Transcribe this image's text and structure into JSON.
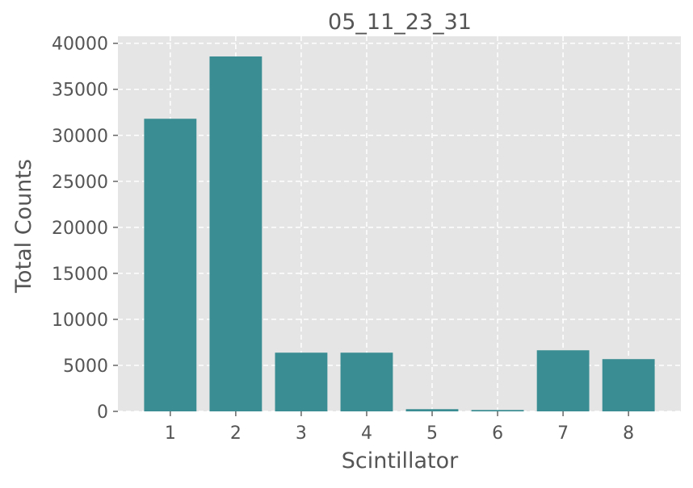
{
  "chart_data": {
    "type": "bar",
    "title": "05_11_23_31",
    "xlabel": "Scintillator",
    "ylabel": "Total Counts",
    "categories": [
      "1",
      "2",
      "3",
      "4",
      "5",
      "6",
      "7",
      "8"
    ],
    "values": [
      31800,
      38570,
      6380,
      6380,
      240,
      150,
      6640,
      5680
    ],
    "ylim": [
      0,
      40760
    ],
    "yticks": [
      0,
      5000,
      10000,
      15000,
      20000,
      25000,
      30000,
      35000,
      40000
    ],
    "grid": true,
    "bar_color": "#3a8d92",
    "background_color": "#e5e5e5"
  }
}
